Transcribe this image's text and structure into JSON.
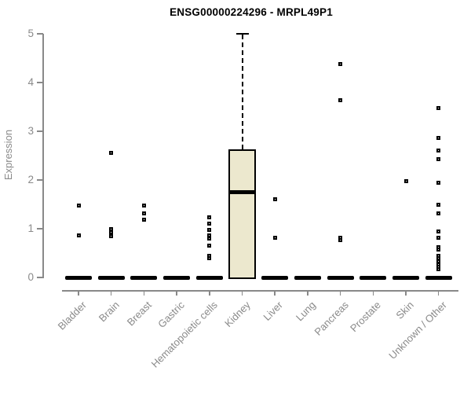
{
  "chart_data": {
    "type": "boxplot",
    "title": "ENSG00000224296 - MRPL49P1",
    "ylabel": "Expression",
    "xlabel": "",
    "ylim": [
      0,
      5
    ],
    "yticks": [
      0,
      1,
      2,
      3,
      4,
      5
    ],
    "grid": false,
    "legend": null,
    "categories": [
      "Bladder",
      "Brain",
      "Breast",
      "Gastric",
      "Hematopoietic cells",
      "Kidney",
      "Liver",
      "Lung",
      "Pancreas",
      "Prostate",
      "Skin",
      "Unknown / Other"
    ],
    "boxes": [
      {
        "category": "Bladder",
        "median": 0,
        "q1": 0,
        "q3": 0,
        "whisker_low": 0,
        "whisker_high": 0,
        "outliers": [
          1.48,
          0.87
        ]
      },
      {
        "category": "Brain",
        "median": 0,
        "q1": 0,
        "q3": 0,
        "whisker_low": 0,
        "whisker_high": 0,
        "outliers": [
          2.55,
          1.0,
          0.92,
          0.85
        ]
      },
      {
        "category": "Breast",
        "median": 0,
        "q1": 0,
        "q3": 0,
        "whisker_low": 0,
        "whisker_high": 0,
        "outliers": [
          1.48,
          1.31,
          1.19
        ]
      },
      {
        "category": "Gastric",
        "median": 0,
        "q1": 0,
        "q3": 0,
        "whisker_low": 0,
        "whisker_high": 0,
        "outliers": []
      },
      {
        "category": "Hematopoietic cells",
        "median": 0,
        "q1": 0,
        "q3": 0,
        "whisker_low": 0,
        "whisker_high": 0,
        "outliers": [
          1.23,
          1.11,
          0.98,
          0.86,
          0.8,
          0.66,
          0.45,
          0.4
        ]
      },
      {
        "category": "Kidney",
        "median": 1.75,
        "q1": 0,
        "q3": 2.63,
        "whisker_low": 0,
        "whisker_high": 5.0,
        "outliers": []
      },
      {
        "category": "Liver",
        "median": 0,
        "q1": 0,
        "q3": 0,
        "whisker_low": 0,
        "whisker_high": 0,
        "outliers": [
          1.61,
          0.82
        ]
      },
      {
        "category": "Lung",
        "median": 0,
        "q1": 0,
        "q3": 0,
        "whisker_low": 0,
        "whisker_high": 0,
        "outliers": []
      },
      {
        "category": "Pancreas",
        "median": 0,
        "q1": 0,
        "q3": 0,
        "whisker_low": 0,
        "whisker_high": 0,
        "outliers": [
          4.38,
          3.64,
          0.82,
          0.77
        ]
      },
      {
        "category": "Prostate",
        "median": 0,
        "q1": 0,
        "q3": 0,
        "whisker_low": 0,
        "whisker_high": 0,
        "outliers": []
      },
      {
        "category": "Skin",
        "median": 0,
        "q1": 0,
        "q3": 0,
        "whisker_low": 0,
        "whisker_high": 0,
        "outliers": [
          1.97
        ]
      },
      {
        "category": "Unknown / Other",
        "median": 0,
        "q1": 0,
        "q3": 0,
        "whisker_low": 0,
        "whisker_high": 0,
        "outliers": [
          3.48,
          2.87,
          2.6,
          2.42,
          1.94,
          1.5,
          1.31,
          0.94,
          0.81,
          0.62,
          0.57,
          0.45,
          0.39,
          0.33,
          0.27,
          0.21,
          0.17
        ]
      }
    ],
    "colors": {
      "box_fill": "#ECE8CE",
      "box_border": "#000000",
      "median": "#000000",
      "outlier": "#000000",
      "axis": "#898989",
      "tick_label": "#8a8a8a",
      "title": "#000000",
      "background": "#ffffff"
    }
  }
}
